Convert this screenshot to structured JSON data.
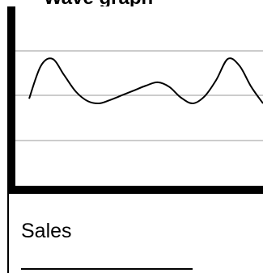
{
  "page": {
    "title": "Wave graph"
  },
  "chart_data": {
    "type": "line",
    "title": "",
    "xlabel": "",
    "ylabel": "",
    "x": [
      0,
      1,
      2,
      3,
      4,
      5,
      6,
      7,
      8,
      9,
      10,
      11,
      12,
      13,
      14,
      15,
      16,
      17,
      18,
      19,
      20
    ],
    "series": [
      {
        "values": [
          0.1,
          0.8,
          0.95,
          0.6,
          0.25,
          0.05,
          0.0,
          0.08,
          0.18,
          0.28,
          0.38,
          0.45,
          0.35,
          0.12,
          0.0,
          0.15,
          0.5,
          0.95,
          0.8,
          0.35,
          0.0
        ]
      }
    ],
    "gridlines": 3,
    "grid": true,
    "line_color": "#000000",
    "grid_color": "#9a9a9a"
  },
  "field": {
    "label": "Sales",
    "value": ""
  }
}
